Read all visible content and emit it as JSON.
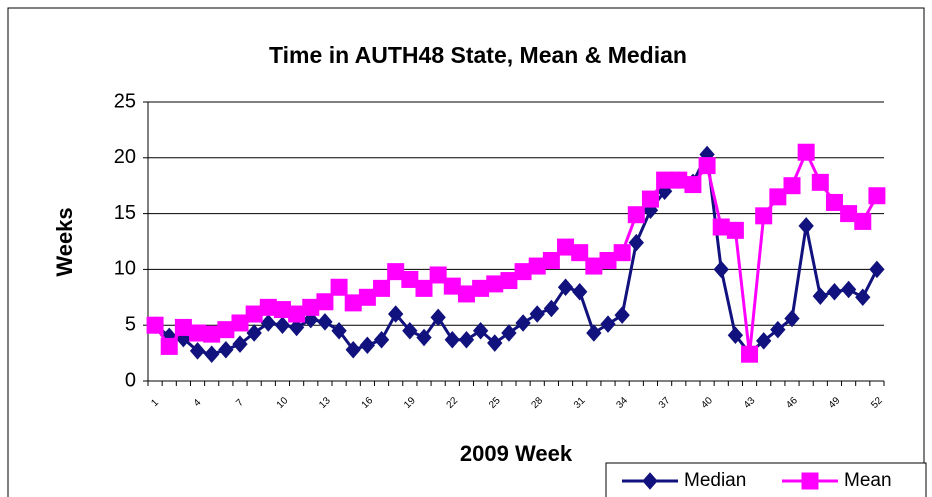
{
  "chart_data": {
    "type": "line",
    "title": "Time in AUTH48 State, Mean & Median",
    "x_label": "2009 Week",
    "y_label": "Weeks",
    "categories": [
      "1",
      null,
      null,
      "4",
      null,
      null,
      "7",
      null,
      null,
      "10",
      null,
      null,
      "13",
      null,
      null,
      "16",
      null,
      null,
      "19",
      null,
      null,
      "22",
      null,
      null,
      "25",
      null,
      null,
      "28",
      null,
      null,
      "31",
      null,
      null,
      "34",
      null,
      null,
      "37",
      null,
      null,
      "40",
      null,
      null,
      "43",
      null,
      null,
      "46",
      null,
      null,
      "49",
      null,
      null,
      "52"
    ],
    "series": [
      {
        "name": "Median",
        "color": "#12127e",
        "marker": "diamond",
        "values": [
          5,
          4,
          3.8,
          2.7,
          2.4,
          2.8,
          3.3,
          4.3,
          5.2,
          5,
          4.8,
          5.5,
          5.3,
          4.5,
          2.8,
          3.2,
          3.7,
          6,
          4.5,
          3.9,
          5.7,
          3.7,
          3.7,
          4.5,
          3.4,
          4.3,
          5.2,
          6,
          6.5,
          8.4,
          8,
          4.3,
          5.1,
          5.9,
          12.4,
          15.3,
          17,
          18,
          17.8,
          20.3,
          10,
          4.1,
          2.5,
          3.6,
          4.6,
          5.6,
          13.9,
          7.6,
          8,
          8.2,
          7.5,
          10
        ]
      },
      {
        "name": "Mean",
        "color": "#ff00ff",
        "marker": "square",
        "values": [
          5,
          3.1,
          4.8,
          4.3,
          4.2,
          4.6,
          5.2,
          6,
          6.6,
          6.4,
          6,
          6.6,
          7.1,
          8.4,
          7,
          7.5,
          8.3,
          9.8,
          9.1,
          8.3,
          9.5,
          8.5,
          7.8,
          8.3,
          8.7,
          9,
          9.8,
          10.3,
          10.8,
          12,
          11.5,
          10.3,
          10.8,
          11.5,
          14.9,
          16.3,
          18,
          18,
          17.6,
          19.3,
          13.8,
          13.5,
          2.4,
          14.8,
          16.5,
          17.5,
          20.5,
          17.8,
          16,
          15,
          14.3,
          16.6
        ]
      }
    ],
    "ylim": [
      0,
      25
    ],
    "yticks": [
      0,
      5,
      10,
      15,
      20,
      25
    ],
    "grid": true,
    "legend": "bottom-right"
  }
}
